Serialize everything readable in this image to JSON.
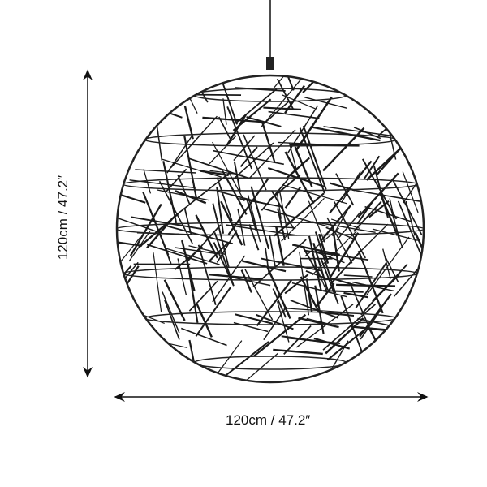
{
  "dimensions": {
    "width_label": "120cm / 47.2″",
    "height_label": "120cm / 47.2″"
  },
  "colors": {
    "line": "#111111",
    "background": "#ffffff"
  }
}
